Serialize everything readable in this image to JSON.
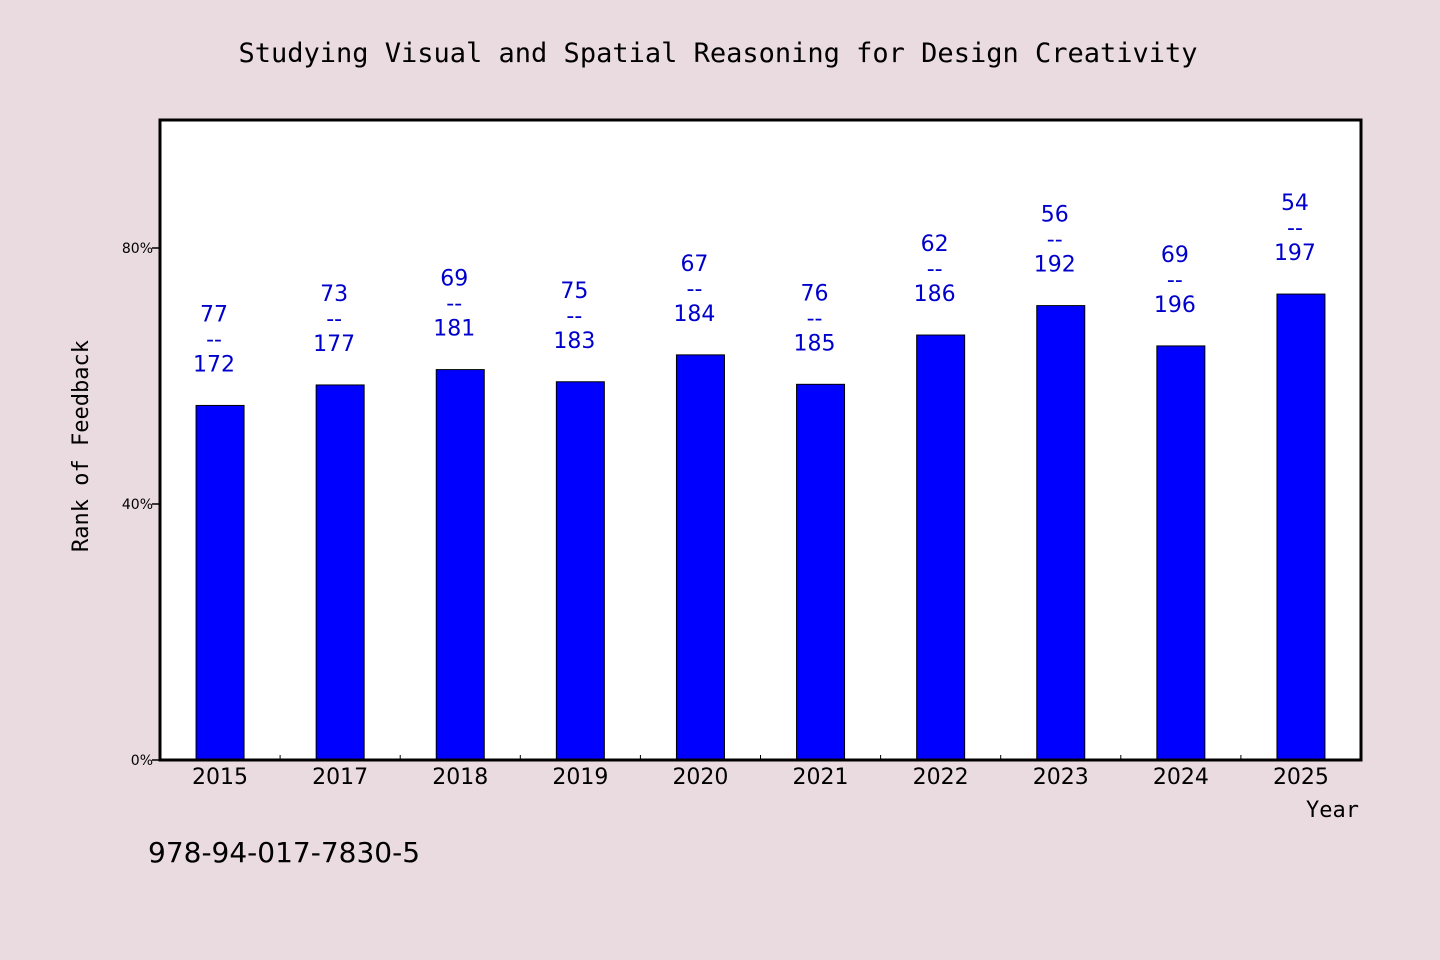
{
  "colors": {
    "background": "#EADBE1",
    "plot_background": "#FFFFFF",
    "bar": "#0000FF",
    "label": "#0000CC",
    "axis": "#000000"
  },
  "isbn": "978-94-017-7830-5",
  "chart_data": {
    "type": "bar",
    "title": "Studying Visual and Spatial Reasoning for Design Creativity",
    "xlabel": "Year",
    "ylabel": "Rank of Feedback",
    "categories": [
      "2015",
      "2017",
      "2018",
      "2019",
      "2020",
      "2021",
      "2022",
      "2023",
      "2024",
      "2025"
    ],
    "values": [
      55.4,
      58.6,
      61.0,
      59.1,
      63.3,
      58.7,
      66.4,
      71.0,
      64.7,
      72.8
    ],
    "point_labels": [
      {
        "top": "77",
        "sep": "--",
        "bottom": "172"
      },
      {
        "top": "73",
        "sep": "--",
        "bottom": "177"
      },
      {
        "top": "69",
        "sep": "--",
        "bottom": "181"
      },
      {
        "top": "75",
        "sep": "--",
        "bottom": "183"
      },
      {
        "top": "67",
        "sep": "--",
        "bottom": "184"
      },
      {
        "top": "76",
        "sep": "--",
        "bottom": "185"
      },
      {
        "top": "62",
        "sep": "--",
        "bottom": "186"
      },
      {
        "top": "56",
        "sep": "--",
        "bottom": "192"
      },
      {
        "top": "69",
        "sep": "--",
        "bottom": "196"
      },
      {
        "top": "54",
        "sep": "--",
        "bottom": "197"
      }
    ],
    "ylim": [
      0,
      100
    ],
    "yticks": [
      0,
      40,
      80
    ],
    "ytick_labels": [
      "0%",
      "40%",
      "80%"
    ],
    "grid": false,
    "legend": "none"
  }
}
